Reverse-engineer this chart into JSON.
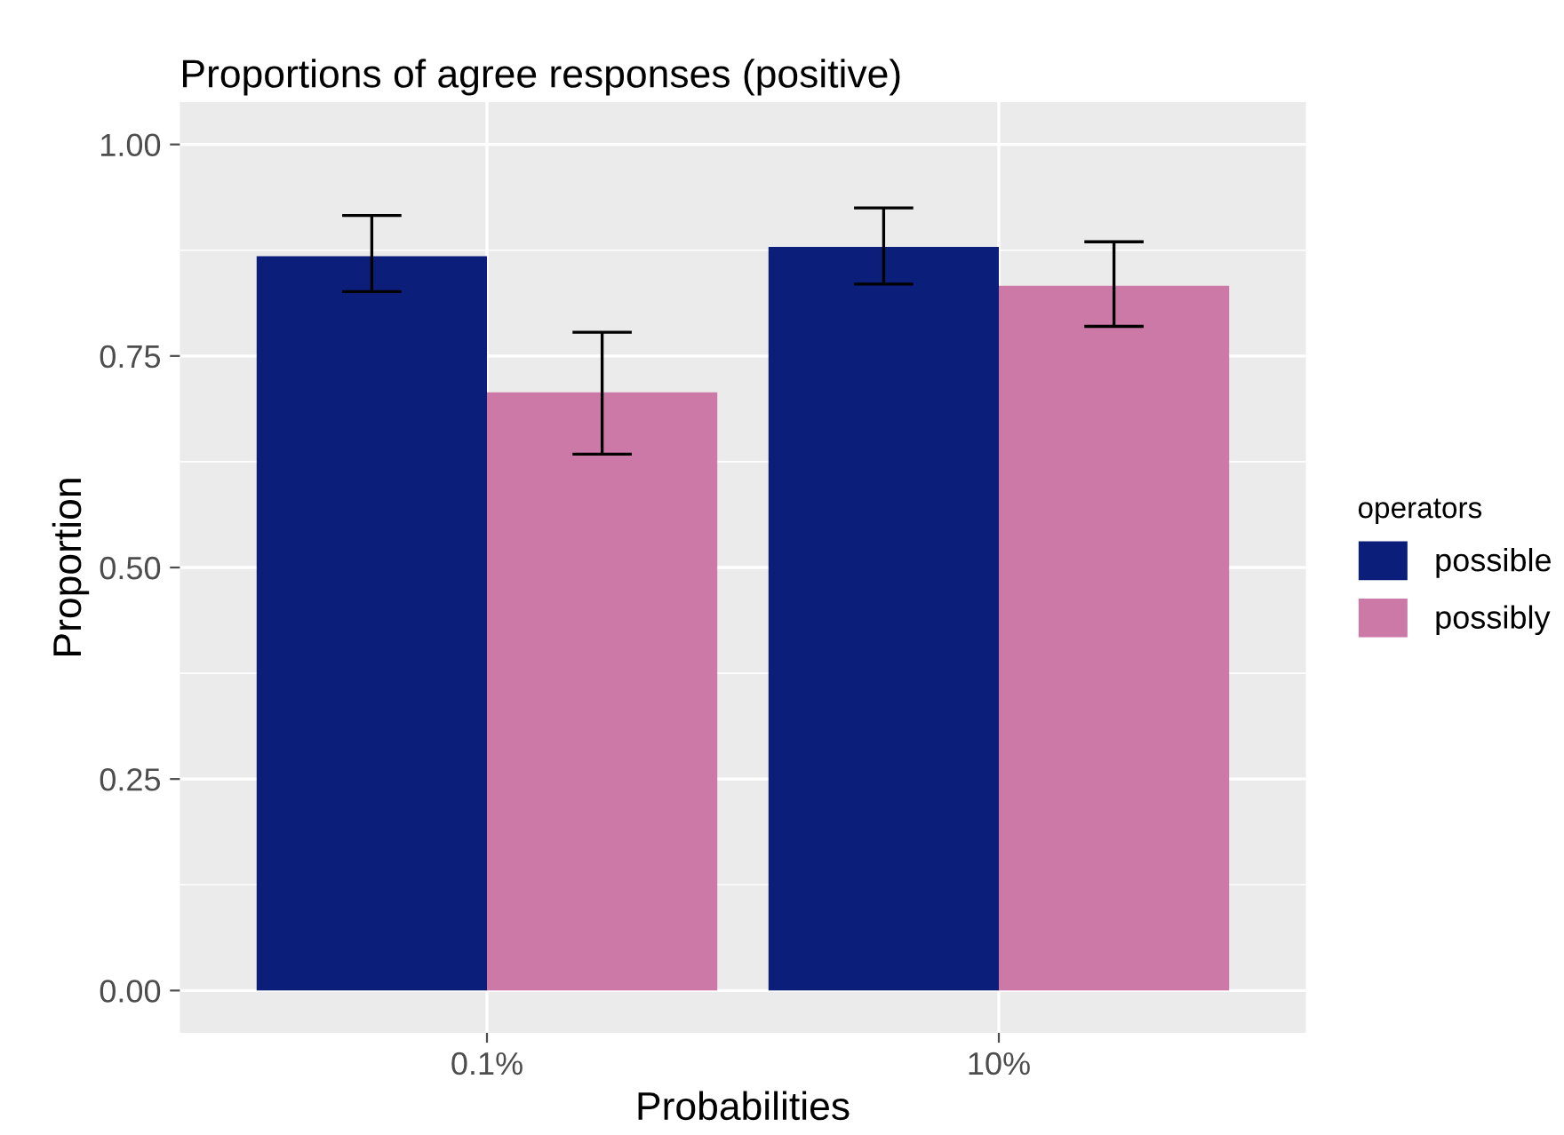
{
  "chart_data": {
    "type": "bar",
    "title": "Proportions of agree responses (positive)",
    "xlabel": "Probabilities",
    "ylabel": "Proportion",
    "legend_title": "operators",
    "categories": [
      "0.1%",
      "10%"
    ],
    "series": [
      {
        "name": "possible",
        "color": "#0b1f7a",
        "values": [
          0.868,
          0.879
        ],
        "errors": [
          [
            0.826,
            0.916
          ],
          [
            0.835,
            0.925
          ]
        ]
      },
      {
        "name": "possibly",
        "color": "#cc79a7",
        "values": [
          0.707,
          0.833
        ],
        "errors": [
          [
            0.634,
            0.778
          ],
          [
            0.785,
            0.885
          ]
        ]
      }
    ],
    "ylim": [
      -0.05,
      1.05
    ],
    "yticks": [
      {
        "value": 0,
        "label": "0.00"
      },
      {
        "value": 0.25,
        "label": "0.25"
      },
      {
        "value": 0.5,
        "label": "0.50"
      },
      {
        "value": 0.75,
        "label": "0.75"
      },
      {
        "value": 1,
        "label": "1.00"
      }
    ],
    "grid": true,
    "legend": "right"
  }
}
